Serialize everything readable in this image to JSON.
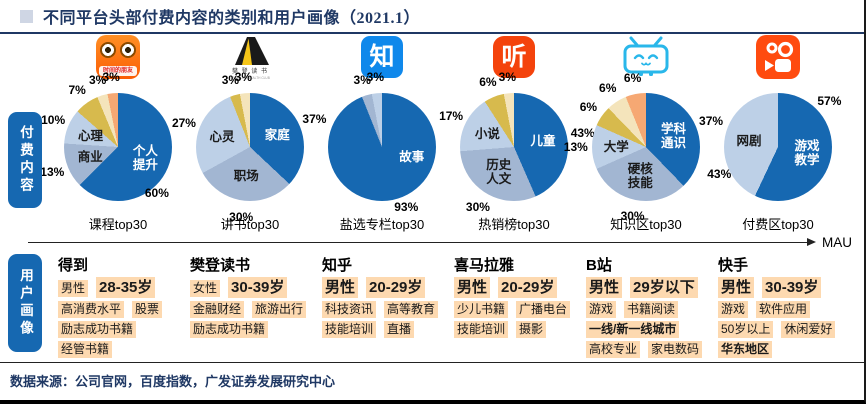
{
  "header": {
    "title": "不同平台头部付费内容的类别和用户画像（2021.1）"
  },
  "sidebar": {
    "paid_content_label": "付费内容",
    "user_profile_label": "用户画像"
  },
  "axis": {
    "mau_label": "MAU"
  },
  "footer": {
    "source": "数据来源：公司官网，百度指数，广发证券发展研究中心"
  },
  "colors": {
    "navy": "#1f3864",
    "dark_blue": "#1668b1",
    "medium_blue": "#a2b6d2",
    "light_blue": "#bdd0e7",
    "gold": "#d7ba4d",
    "cream": "#f4e4bb",
    "orange": "#f6a873",
    "highlight": "#fdd9b0",
    "dedao_orange": "#fb6a05",
    "fandeng_black": "#1a1a1a",
    "fandeng_yellow": "#f5c518",
    "zhihu_blue": "#0f88eb",
    "ximalaya_red": "#f4430c",
    "bilibili_blue": "#29b7ea",
    "kuaishou_orange": "#ff4b0f"
  },
  "platforms": [
    {
      "name": "得到",
      "logo": "dedao-owl-icon",
      "logo_text": "时间的朋友",
      "profile": [
        [
          {
            "t": "男性"
          },
          {
            "t": "28-35岁",
            "b": 1,
            "lg": 1
          }
        ],
        [
          {
            "t": "高消费水平"
          },
          {
            "t": "股票"
          }
        ],
        [
          {
            "t": "励志成功书籍"
          }
        ],
        [
          {
            "t": "经管书籍"
          }
        ]
      ]
    },
    {
      "name": "樊登读书",
      "logo": "fandeng-book-icon",
      "logo_text": "樊 登 读 书",
      "logo_subtext": "SPIRITUAL WEALTH CLUB",
      "profile": [
        [
          {
            "t": "女性"
          },
          {
            "t": "30-39岁",
            "b": 1,
            "lg": 1
          }
        ],
        [
          {
            "t": "金融财经"
          },
          {
            "t": "旅游出行"
          }
        ],
        [
          {
            "t": "励志成功书籍"
          }
        ]
      ]
    },
    {
      "name": "知乎",
      "logo": "zhihu-icon",
      "logo_char": "知",
      "profile": [
        [
          {
            "t": "男性",
            "b": 1,
            "lg": 1
          },
          {
            "t": "20-29岁",
            "b": 1,
            "lg": 1
          }
        ],
        [
          {
            "t": "科技资讯"
          },
          {
            "t": "高等教育"
          }
        ],
        [
          {
            "t": "技能培训"
          },
          {
            "t": "直播"
          }
        ]
      ]
    },
    {
      "name": "喜马拉雅",
      "logo": "ximalaya-icon",
      "logo_char": "听",
      "profile": [
        [
          {
            "t": "男性",
            "b": 1,
            "lg": 1
          },
          {
            "t": "20-29岁",
            "b": 1,
            "lg": 1
          }
        ],
        [
          {
            "t": "少儿书籍"
          },
          {
            "t": "广播电台"
          }
        ],
        [
          {
            "t": "技能培训"
          },
          {
            "t": "摄影"
          }
        ]
      ]
    },
    {
      "name": "B站",
      "logo": "bilibili-tv-icon",
      "profile": [
        [
          {
            "t": "男性",
            "b": 1,
            "lg": 1
          },
          {
            "t": "29岁以下",
            "b": 1,
            "lg": 1
          }
        ],
        [
          {
            "t": "游戏"
          },
          {
            "t": "书籍阅读"
          }
        ],
        [
          {
            "t": "一线/新一线城市",
            "b": 1
          }
        ],
        [
          {
            "t": "高校专业"
          },
          {
            "t": "家电数码"
          }
        ]
      ]
    },
    {
      "name": "快手",
      "logo": "kuaishou-camera-icon",
      "profile": [
        [
          {
            "t": "男性",
            "b": 1,
            "lg": 1
          },
          {
            "t": "30-39岁",
            "b": 1,
            "lg": 1
          }
        ],
        [
          {
            "t": "游戏"
          },
          {
            "t": "软件应用"
          }
        ],
        [
          {
            "t": "50岁以上"
          },
          {
            "t": "休闲爱好"
          }
        ],
        [
          {
            "t": "华东地区",
            "b": 1
          }
        ]
      ]
    }
  ],
  "chart_data": [
    {
      "type": "pie",
      "platform": "得到",
      "title": "课程top30",
      "slices": [
        {
          "label": "个人提升",
          "value": 60,
          "c": "dark_blue",
          "text": "#ffffff",
          "pct_a": 140,
          "pct_r": 1.12
        },
        {
          "label": "商业",
          "value": 13,
          "c": "medium_blue",
          "text": "#1a1a1a"
        },
        {
          "label": "心理",
          "value": 10,
          "c": "light_blue",
          "text": "#1a1a1a"
        },
        {
          "label": "",
          "value": 7,
          "c": "gold"
        },
        {
          "label": "",
          "value": 3,
          "c": "cream"
        },
        {
          "label": "",
          "value": 3,
          "c": "orange"
        }
      ]
    },
    {
      "type": "pie",
      "platform": "樊登读书",
      "title": "讲书top30",
      "slices": [
        {
          "label": "家庭",
          "value": 37,
          "c": "dark_blue",
          "text": "#ffffff"
        },
        {
          "label": "职场",
          "value": 30,
          "c": "medium_blue",
          "text": "#1a1a1a"
        },
        {
          "label": "心灵",
          "value": 27,
          "c": "light_blue",
          "text": "#1a1a1a"
        },
        {
          "label": "",
          "value": 3,
          "c": "gold"
        },
        {
          "label": "",
          "value": 3,
          "c": "cream"
        }
      ]
    },
    {
      "type": "pie",
      "platform": "知乎",
      "title": "盐选专栏top30",
      "slices": [
        {
          "label": "故事",
          "value": 93,
          "c": "dark_blue",
          "text": "#ffffff",
          "label_a": 108,
          "label_r": 0.58,
          "pct_a": 158,
          "pct_r": 1.2
        },
        {
          "label": "",
          "value": 3,
          "c": "medium_blue"
        },
        {
          "label": "",
          "value": 3,
          "c": "light_blue"
        }
      ]
    },
    {
      "type": "pie",
      "platform": "喜马拉雅",
      "title": "热销榜top30",
      "slices": [
        {
          "label": "儿童",
          "value": 43,
          "c": "dark_blue",
          "text": "#ffffff"
        },
        {
          "label": "历史人文",
          "value": 30,
          "c": "medium_blue",
          "text": "#1a1a1a"
        },
        {
          "label": "小说",
          "value": 17,
          "c": "light_blue",
          "text": "#1a1a1a"
        },
        {
          "label": "",
          "value": 6,
          "c": "gold"
        },
        {
          "label": "",
          "value": 3,
          "c": "cream"
        }
      ]
    },
    {
      "type": "pie",
      "platform": "B站",
      "title": "知识区top30",
      "slices": [
        {
          "label": "学科通识",
          "value": 37,
          "c": "dark_blue",
          "text": "#ffffff"
        },
        {
          "label": "硬核技能",
          "value": 30,
          "c": "medium_blue",
          "text": "#1a1a1a"
        },
        {
          "label": "大学",
          "value": 13,
          "c": "light_blue",
          "text": "#1a1a1a"
        },
        {
          "label": "",
          "value": 6,
          "c": "gold"
        },
        {
          "label": "",
          "value": 6,
          "c": "cream"
        },
        {
          "label": "",
          "value": 6,
          "c": "orange"
        }
      ]
    },
    {
      "type": "pie",
      "platform": "快手",
      "title": "付费区top30",
      "slices": [
        {
          "label": "游戏教学",
          "value": 57,
          "c": "dark_blue",
          "text": "#ffffff",
          "pct_a": 48,
          "pct_r": 1.28
        },
        {
          "label": "网剧",
          "value": 43,
          "c": "light_blue",
          "text": "#1a1a1a",
          "pct_a": 245,
          "pct_r": 1.2
        }
      ]
    }
  ]
}
